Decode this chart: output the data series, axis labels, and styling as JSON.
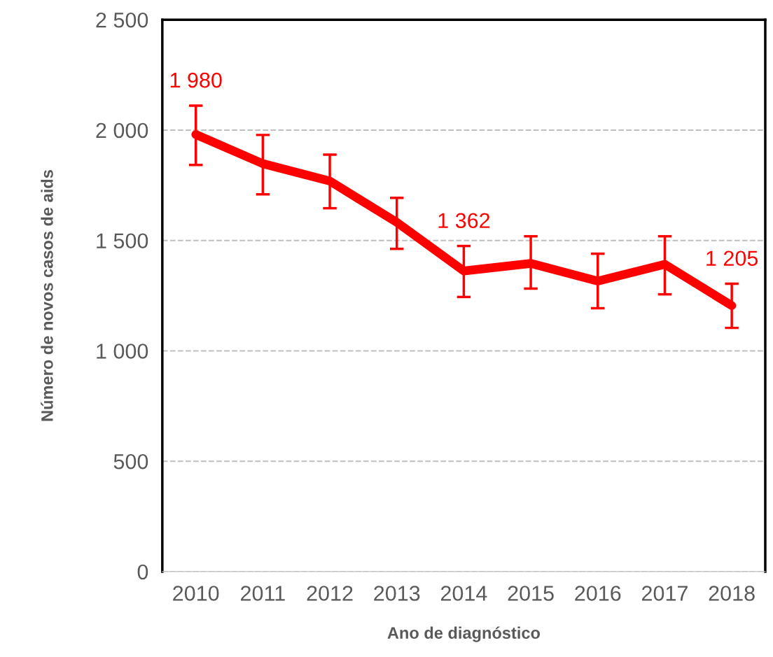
{
  "chart_data": {
    "type": "line",
    "xlabel": "Ano de diagnóstico",
    "ylabel": "Número de novos casos de aids",
    "categories": [
      "2010",
      "2011",
      "2012",
      "2013",
      "2014",
      "2015",
      "2016",
      "2017",
      "2018"
    ],
    "series": [
      {
        "color": "#ff0000",
        "values": [
          1980,
          1848,
          1769,
          1582,
          1362,
          1396,
          1316,
          1392,
          1205
        ],
        "errors": [
          [
            1842,
            2111
          ],
          [
            1709,
            1978
          ],
          [
            1646,
            1889
          ],
          [
            1462,
            1693
          ],
          [
            1244,
            1475
          ],
          [
            1282,
            1519
          ],
          [
            1193,
            1440
          ],
          [
            1256,
            1519
          ],
          [
            1104,
            1304
          ]
        ],
        "value_labels": [
          "1 980",
          null,
          null,
          null,
          "1 362",
          null,
          null,
          null,
          "1 205"
        ]
      }
    ],
    "ylim": [
      0,
      2500
    ],
    "yticks": [
      0,
      {
        "value": 500,
        "label": "500"
      },
      {
        "value": 1000,
        "label": "1 000"
      },
      {
        "value": 1500,
        "label": "1 500"
      },
      {
        "value": 2000,
        "label": "2 000"
      },
      {
        "value": 2500,
        "label": "2 500"
      }
    ],
    "grid": "y",
    "line_style": "solid"
  }
}
